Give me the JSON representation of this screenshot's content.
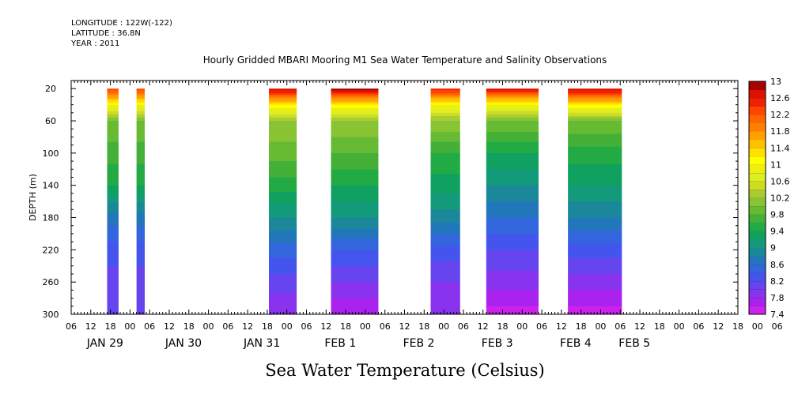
{
  "header": {
    "longitude": "LONGITUDE : 122W(-122)",
    "latitude": "LATITUDE : 36.8N",
    "year": "YEAR : 2011"
  },
  "chart_data": {
    "type": "heatmap",
    "title": "Hourly Gridded MBARI Mooring M1 Sea Water Temperature and Salinity Observations",
    "xlabel": "",
    "ylabel": "DEPTH (m)",
    "variable_label": "Sea Water Temperature (Celsius)",
    "x_unit": "hours from JAN 29 06:00, 2011",
    "xlim": [
      0,
      204
    ],
    "ylim": [
      300,
      10
    ],
    "y_ticks": [
      20,
      60,
      100,
      140,
      180,
      220,
      260,
      300
    ],
    "x_tick_hours": [
      "06",
      "12",
      "18",
      "00",
      "06",
      "12",
      "18",
      "00",
      "06",
      "12",
      "18",
      "00",
      "06",
      "12",
      "18",
      "00",
      "06",
      "12",
      "18",
      "00",
      "06",
      "12",
      "18",
      "00",
      "06",
      "12",
      "18",
      "00",
      "06",
      "12",
      "18",
      "00",
      "06",
      "12",
      "18",
      "00",
      "06"
    ],
    "x_date_labels": [
      {
        "text": "JAN 29",
        "hour": 6
      },
      {
        "text": "JAN 30",
        "hour": 30
      },
      {
        "text": "JAN 31",
        "hour": 54
      },
      {
        "text": "FEB 1",
        "hour": 78
      },
      {
        "text": "FEB 2",
        "hour": 102
      },
      {
        "text": "FEB 3",
        "hour": 126
      },
      {
        "text": "FEB 4",
        "hour": 150
      },
      {
        "text": "FEB 5",
        "hour": 168
      }
    ],
    "colorbar": {
      "levels": [
        7.4,
        7.6,
        7.8,
        8.0,
        8.2,
        8.4,
        8.6,
        8.8,
        9.0,
        9.2,
        9.4,
        9.6,
        9.8,
        10.0,
        10.2,
        10.4,
        10.6,
        10.8,
        11.0,
        11.2,
        11.4,
        11.6,
        11.8,
        12.0,
        12.2,
        12.4,
        12.6,
        12.8,
        13.0
      ],
      "tick_labels": [
        "7.4",
        "7.8",
        "8.2",
        "8.6",
        "9",
        "9.4",
        "9.8",
        "10.2",
        "10.6",
        "11",
        "11.4",
        "11.8",
        "12.2",
        "12.6",
        "13"
      ],
      "colors": [
        "#cc22ee",
        "#aa22ee",
        "#8833ee",
        "#6644ee",
        "#4455ee",
        "#3366dd",
        "#2277bb",
        "#1a8899",
        "#129a7a",
        "#10a060",
        "#22aa44",
        "#44b038",
        "#66bb33",
        "#88c433",
        "#aacc33",
        "#ccdd22",
        "#ddee22",
        "#eeee11",
        "#ffff00",
        "#ffe000",
        "#ffc000",
        "#ffa000",
        "#ff8000",
        "#ff6600",
        "#ff4400",
        "#ee2200",
        "#dd1100",
        "#aa0000"
      ]
    },
    "data_blocks": [
      {
        "start_hour": 11.0,
        "end_hour": 14.5,
        "surface_temp": 12.4,
        "profile": [
          [
            20,
            12.4
          ],
          [
            40,
            11.0
          ],
          [
            60,
            10.0
          ],
          [
            100,
            9.7
          ],
          [
            140,
            9.4
          ],
          [
            180,
            8.7
          ],
          [
            220,
            8.3
          ],
          [
            260,
            8.1
          ],
          [
            300,
            8.0
          ]
        ]
      },
      {
        "start_hour": 20.0,
        "end_hour": 22.5,
        "surface_temp": 12.4,
        "profile": [
          [
            20,
            12.4
          ],
          [
            40,
            11.0
          ],
          [
            60,
            10.0
          ],
          [
            100,
            9.7
          ],
          [
            140,
            9.4
          ],
          [
            180,
            8.7
          ],
          [
            220,
            8.3
          ],
          [
            260,
            8.1
          ],
          [
            300,
            8.0
          ]
        ]
      },
      {
        "start_hour": 60.5,
        "end_hour": 69.0,
        "surface_temp": 12.8,
        "profile": [
          [
            20,
            12.8
          ],
          [
            40,
            11.2
          ],
          [
            60,
            10.2
          ],
          [
            100,
            9.9
          ],
          [
            140,
            9.5
          ],
          [
            180,
            9.0
          ],
          [
            220,
            8.5
          ],
          [
            260,
            8.1
          ],
          [
            300,
            7.8
          ]
        ]
      },
      {
        "start_hour": 79.5,
        "end_hour": 94.0,
        "surface_temp": 12.9,
        "profile": [
          [
            20,
            12.9
          ],
          [
            40,
            11.2
          ],
          [
            60,
            10.2
          ],
          [
            100,
            9.8
          ],
          [
            140,
            9.4
          ],
          [
            180,
            9.0
          ],
          [
            220,
            8.4
          ],
          [
            260,
            8.0
          ],
          [
            300,
            7.6
          ]
        ]
      },
      {
        "start_hour": 110.0,
        "end_hour": 119.0,
        "surface_temp": 12.6,
        "profile": [
          [
            20,
            12.6
          ],
          [
            40,
            11.0
          ],
          [
            60,
            10.2
          ],
          [
            100,
            9.6
          ],
          [
            140,
            9.3
          ],
          [
            180,
            8.9
          ],
          [
            220,
            8.3
          ],
          [
            260,
            8.0
          ],
          [
            300,
            7.8
          ]
        ]
      },
      {
        "start_hour": 127.0,
        "end_hour": 143.0,
        "surface_temp": 12.7,
        "profile": [
          [
            20,
            12.7
          ],
          [
            40,
            11.0
          ],
          [
            60,
            10.0
          ],
          [
            100,
            9.4
          ],
          [
            140,
            9.0
          ],
          [
            180,
            8.6
          ],
          [
            220,
            8.2
          ],
          [
            260,
            7.9
          ],
          [
            300,
            7.5
          ]
        ]
      },
      {
        "start_hour": 152.0,
        "end_hour": 168.5,
        "surface_temp": 12.8,
        "profile": [
          [
            20,
            12.8
          ],
          [
            40,
            11.2
          ],
          [
            60,
            10.0
          ],
          [
            100,
            9.5
          ],
          [
            140,
            9.2
          ],
          [
            180,
            8.8
          ],
          [
            220,
            8.3
          ],
          [
            260,
            7.9
          ],
          [
            300,
            7.5
          ]
        ]
      }
    ]
  }
}
